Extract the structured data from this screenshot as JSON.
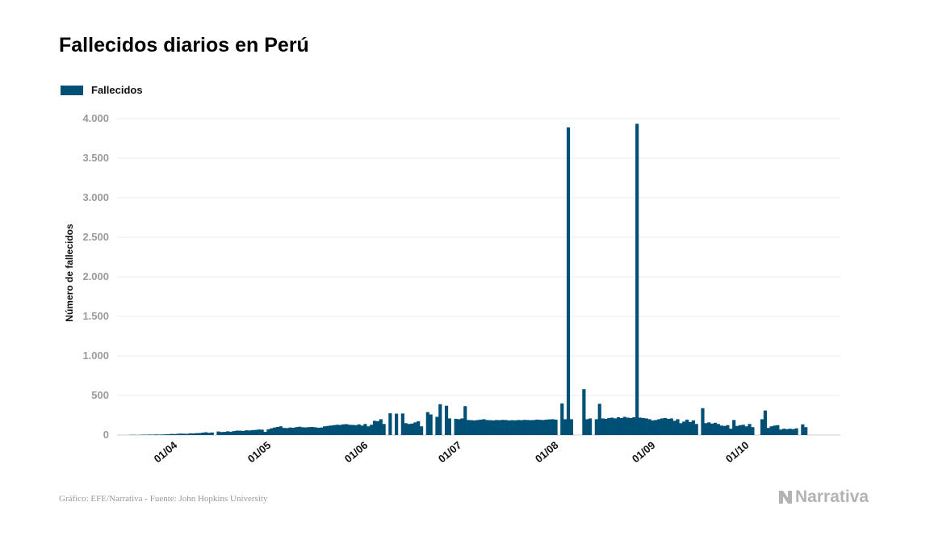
{
  "chart_data": {
    "type": "bar",
    "title": "Fallecidos diarios en Perú",
    "ylabel": "Número de fallecidos",
    "xlabel": "",
    "ylim": [
      0,
      4000
    ],
    "y_ticks": [
      0,
      500,
      1000,
      1500,
      2000,
      2500,
      3000,
      3500,
      4000
    ],
    "y_tick_labels": [
      "0",
      "500",
      "1.000",
      "1.500",
      "2.000",
      "2.500",
      "3.000",
      "3.500",
      "4.000"
    ],
    "x_ticks": [
      "01/04",
      "01/05",
      "01/06",
      "01/07",
      "01/08",
      "01/09",
      "01/10"
    ],
    "x_tick_days": [
      13,
      43,
      74,
      104,
      135,
      166,
      196
    ],
    "legend": {
      "placement": "top-left",
      "entries": [
        "Fallecidos"
      ]
    },
    "grid": true,
    "color": "#004f75",
    "series": [
      {
        "name": "Fallecidos",
        "start_date": "2020-03-19",
        "values": [
          2,
          3,
          1,
          3,
          5,
          4,
          6,
          5,
          8,
          6,
          7,
          9,
          10,
          14,
          12,
          16,
          18,
          17,
          15,
          22,
          20,
          24,
          25,
          30,
          35,
          28,
          32,
          0,
          45,
          38,
          40,
          47,
          42,
          50,
          56,
          55,
          52,
          60,
          58,
          62,
          65,
          70,
          68,
          40,
          72,
          85,
          95,
          102,
          110,
          90,
          88,
          95,
          92,
          100,
          105,
          98,
          96,
          100,
          102,
          98,
          92,
          95,
          110,
          115,
          120,
          125,
          130,
          128,
          135,
          138,
          130,
          128,
          125,
          135,
          120,
          140,
          110,
          130,
          180,
          175,
          200,
          140,
          0,
          275,
          0,
          270,
          0,
          272,
          150,
          140,
          145,
          160,
          175,
          110,
          0,
          290,
          260,
          0,
          230,
          390,
          0,
          370,
          210,
          0,
          205,
          200,
          210,
          365,
          190,
          188,
          185,
          190,
          195,
          200,
          190,
          188,
          185,
          190,
          188,
          192,
          190,
          185,
          188,
          186,
          190,
          188,
          192,
          190,
          188,
          190,
          195,
          192,
          190,
          195,
          198,
          200,
          195,
          0,
          400,
          200,
          3890,
          200,
          0,
          0,
          0,
          580,
          200,
          210,
          0,
          200,
          395,
          210,
          205,
          215,
          220,
          210,
          225,
          215,
          230,
          220,
          215,
          225,
          3935,
          220,
          215,
          210,
          200,
          185,
          190,
          200,
          210,
          215,
          205,
          210,
          180,
          200,
          150,
          170,
          195,
          165,
          185,
          140,
          0,
          340,
          150,
          160,
          145,
          155,
          140,
          120,
          115,
          125,
          80,
          190,
          115,
          125,
          130,
          110,
          140,
          100,
          0,
          0,
          200,
          310,
          90,
          110,
          120,
          125,
          70,
          80,
          75,
          80,
          75,
          85,
          0,
          135,
          100
        ]
      }
    ]
  },
  "footer": {
    "source": "Gráfico: EFE/Narrativa - Fuente: John Hopkins University"
  },
  "brand": {
    "name": "Narrativa",
    "icon": "narrativa-logo-icon",
    "color": "#b3b3b3"
  }
}
